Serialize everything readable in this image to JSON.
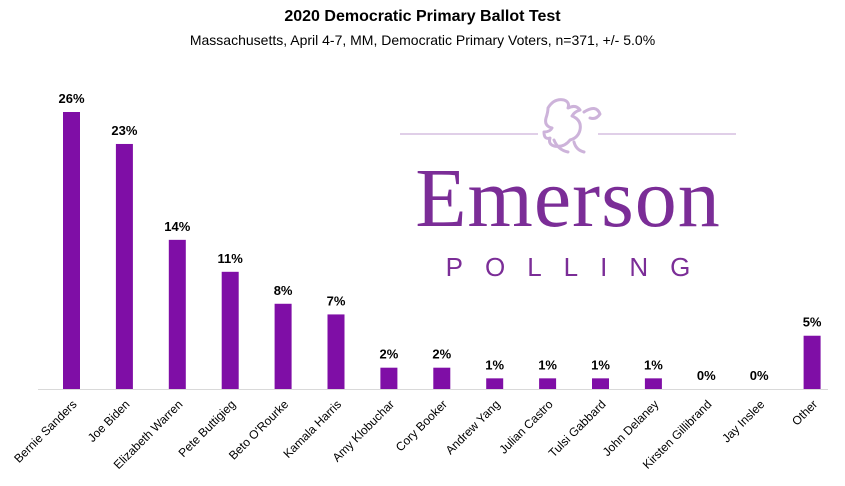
{
  "chart_data": {
    "type": "bar",
    "title": "2020 Democratic Primary Ballot Test",
    "subtitle": "Massachusetts, April 4-7, MM, Democratic Primary Voters, n=371, +/- 5.0%",
    "categories": [
      "Bernie Sanders",
      "Joe Biden",
      "Elizabeth Warren",
      "Pete Buttigieg",
      "Beto O'Rourke",
      "Kamala Harris",
      "Amy Klobuchar",
      "Cory Booker",
      "Andrew Yang",
      "Julian Castro",
      "Tulsi Gabbard",
      "John Delaney",
      "Kirsten Gillibrand",
      "Jay Inslee",
      "Other"
    ],
    "values": [
      26,
      23,
      14,
      11,
      8,
      7,
      2,
      2,
      1,
      1,
      1,
      1,
      0,
      0,
      5
    ],
    "value_labels": [
      "26%",
      "23%",
      "14%",
      "11%",
      "8%",
      "7%",
      "2%",
      "2%",
      "1%",
      "1%",
      "1%",
      "1%",
      "0%",
      "0%",
      "5%"
    ],
    "series_color": "#7f0ea6",
    "ylim": [
      0,
      26
    ],
    "grid": false,
    "legend": "none"
  },
  "watermark": {
    "word": "Emerson",
    "sub": "POLLING",
    "color": "#7b2d97",
    "icon": "lion-rampant-icon"
  }
}
